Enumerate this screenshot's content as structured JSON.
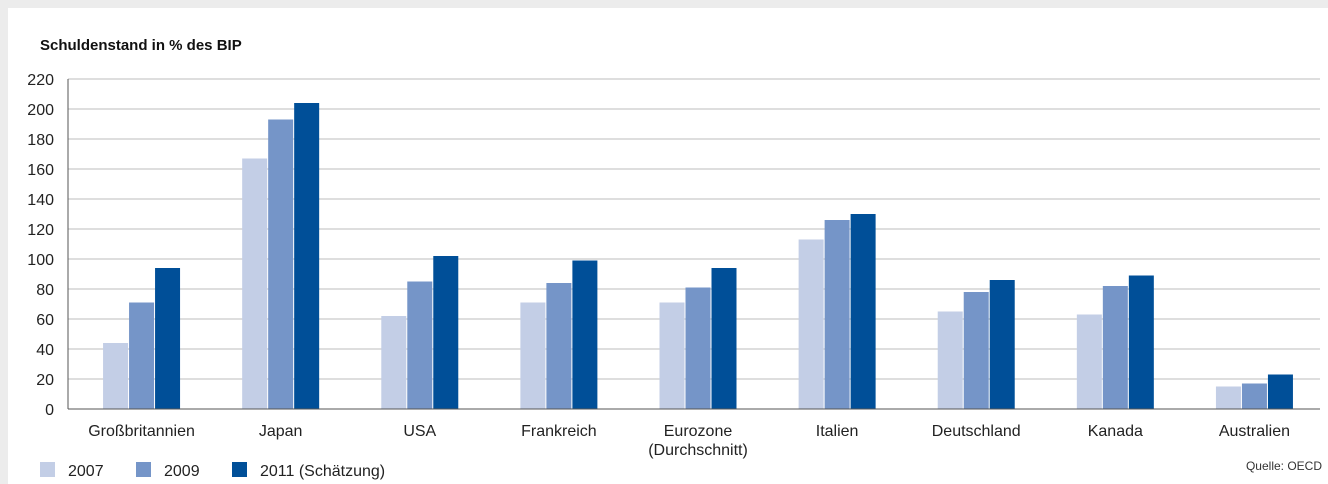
{
  "chart_data": {
    "type": "bar",
    "title": "Schuldenstand in % des BIP",
    "xlabel": "",
    "ylabel": "",
    "ylim": [
      0,
      220
    ],
    "yticks": [
      0,
      20,
      40,
      60,
      80,
      100,
      120,
      140,
      160,
      180,
      200,
      220
    ],
    "grid": true,
    "legend_position": "bottom-left",
    "categories": [
      [
        "Großbritannien"
      ],
      [
        "Japan"
      ],
      [
        "USA"
      ],
      [
        "Frankreich"
      ],
      [
        "Eurozone",
        "(Durchschnitt)"
      ],
      [
        "Italien"
      ],
      [
        "Deutschland"
      ],
      [
        "Kanada"
      ],
      [
        "Australien"
      ]
    ],
    "series": [
      {
        "name": "2007",
        "color": "#c3cee6",
        "values": [
          44,
          167,
          62,
          71,
          71,
          113,
          65,
          63,
          15
        ]
      },
      {
        "name": "2009",
        "color": "#7595c8",
        "values": [
          71,
          193,
          85,
          84,
          81,
          126,
          78,
          82,
          17
        ]
      },
      {
        "name": "2011 (Schätzung)",
        "color": "#004f98",
        "values": [
          94,
          204,
          102,
          99,
          94,
          130,
          86,
          89,
          23
        ]
      }
    ],
    "source": "Quelle: OECD"
  }
}
